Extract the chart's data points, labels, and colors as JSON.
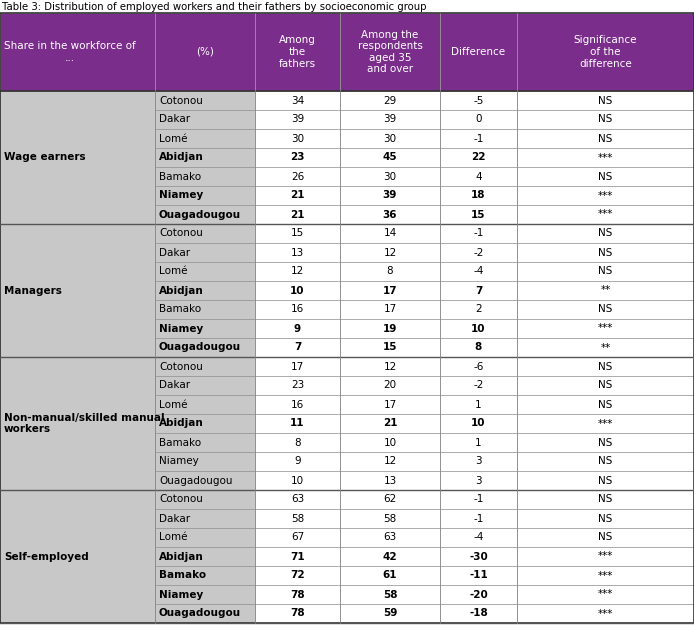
{
  "title": "Table 3: Distribution of employed workers and their fathers by socioeconomic group",
  "header_bg": "#7B2D8B",
  "header_text_color": "#FFFFFF",
  "subgroup_bg": "#C8C8C8",
  "white_bg": "#FFFFFF",
  "sections": [
    {
      "group": "Wage earners",
      "rows": [
        {
          "city": "Cotonou",
          "fathers": "34",
          "respondents": "29",
          "diff": "-5",
          "sig": "NS",
          "bold": false
        },
        {
          "city": "Dakar",
          "fathers": "39",
          "respondents": "39",
          "diff": "0",
          "sig": "NS",
          "bold": false
        },
        {
          "city": "Lomé",
          "fathers": "30",
          "respondents": "30",
          "diff": "-1",
          "sig": "NS",
          "bold": false
        },
        {
          "city": "Abidjan",
          "fathers": "23",
          "respondents": "45",
          "diff": "22",
          "sig": "***",
          "bold": true
        },
        {
          "city": "Bamako",
          "fathers": "26",
          "respondents": "30",
          "diff": "4",
          "sig": "NS",
          "bold": false
        },
        {
          "city": "Niamey",
          "fathers": "21",
          "respondents": "39",
          "diff": "18",
          "sig": "***",
          "bold": true
        },
        {
          "city": "Ouagadougou",
          "fathers": "21",
          "respondents": "36",
          "diff": "15",
          "sig": "***",
          "bold": true
        }
      ]
    },
    {
      "group": "Managers",
      "rows": [
        {
          "city": "Cotonou",
          "fathers": "15",
          "respondents": "14",
          "diff": "-1",
          "sig": "NS",
          "bold": false
        },
        {
          "city": "Dakar",
          "fathers": "13",
          "respondents": "12",
          "diff": "-2",
          "sig": "NS",
          "bold": false
        },
        {
          "city": "Lomé",
          "fathers": "12",
          "respondents": "8",
          "diff": "-4",
          "sig": "NS",
          "bold": false
        },
        {
          "city": "Abidjan",
          "fathers": "10",
          "respondents": "17",
          "diff": "7",
          "sig": "**",
          "bold": true
        },
        {
          "city": "Bamako",
          "fathers": "16",
          "respondents": "17",
          "diff": "2",
          "sig": "NS",
          "bold": false
        },
        {
          "city": "Niamey",
          "fathers": "9",
          "respondents": "19",
          "diff": "10",
          "sig": "***",
          "bold": true
        },
        {
          "city": "Ouagadougou",
          "fathers": "7",
          "respondents": "15",
          "diff": "8",
          "sig": "**",
          "bold": true
        }
      ]
    },
    {
      "group": "Non-manual/skilled manual\nworkers",
      "rows": [
        {
          "city": "Cotonou",
          "fathers": "17",
          "respondents": "12",
          "diff": "-6",
          "sig": "NS",
          "bold": false
        },
        {
          "city": "Dakar",
          "fathers": "23",
          "respondents": "20",
          "diff": "-2",
          "sig": "NS",
          "bold": false
        },
        {
          "city": "Lomé",
          "fathers": "16",
          "respondents": "17",
          "diff": "1",
          "sig": "NS",
          "bold": false
        },
        {
          "city": "Abidjan",
          "fathers": "11",
          "respondents": "21",
          "diff": "10",
          "sig": "***",
          "bold": true
        },
        {
          "city": "Bamako",
          "fathers": "8",
          "respondents": "10",
          "diff": "1",
          "sig": "NS",
          "bold": false
        },
        {
          "city": "Niamey",
          "fathers": "9",
          "respondents": "12",
          "diff": "3",
          "sig": "NS",
          "bold": false
        },
        {
          "city": "Ouagadougou",
          "fathers": "10",
          "respondents": "13",
          "diff": "3",
          "sig": "NS",
          "bold": false
        }
      ]
    },
    {
      "group": "Self-employed",
      "rows": [
        {
          "city": "Cotonou",
          "fathers": "63",
          "respondents": "62",
          "diff": "-1",
          "sig": "NS",
          "bold": false
        },
        {
          "city": "Dakar",
          "fathers": "58",
          "respondents": "58",
          "diff": "-1",
          "sig": "NS",
          "bold": false
        },
        {
          "city": "Lomé",
          "fathers": "67",
          "respondents": "63",
          "diff": "-4",
          "sig": "NS",
          "bold": false
        },
        {
          "city": "Abidjan",
          "fathers": "71",
          "respondents": "42",
          "diff": "-30",
          "sig": "***",
          "bold": true
        },
        {
          "city": "Bamako",
          "fathers": "72",
          "respondents": "61",
          "diff": "-11",
          "sig": "***",
          "bold": true
        },
        {
          "city": "Niamey",
          "fathers": "78",
          "respondents": "58",
          "diff": "-20",
          "sig": "***",
          "bold": true
        },
        {
          "city": "Ouagadougou",
          "fathers": "78",
          "respondents": "59",
          "diff": "-18",
          "sig": "***",
          "bold": true
        }
      ]
    }
  ]
}
